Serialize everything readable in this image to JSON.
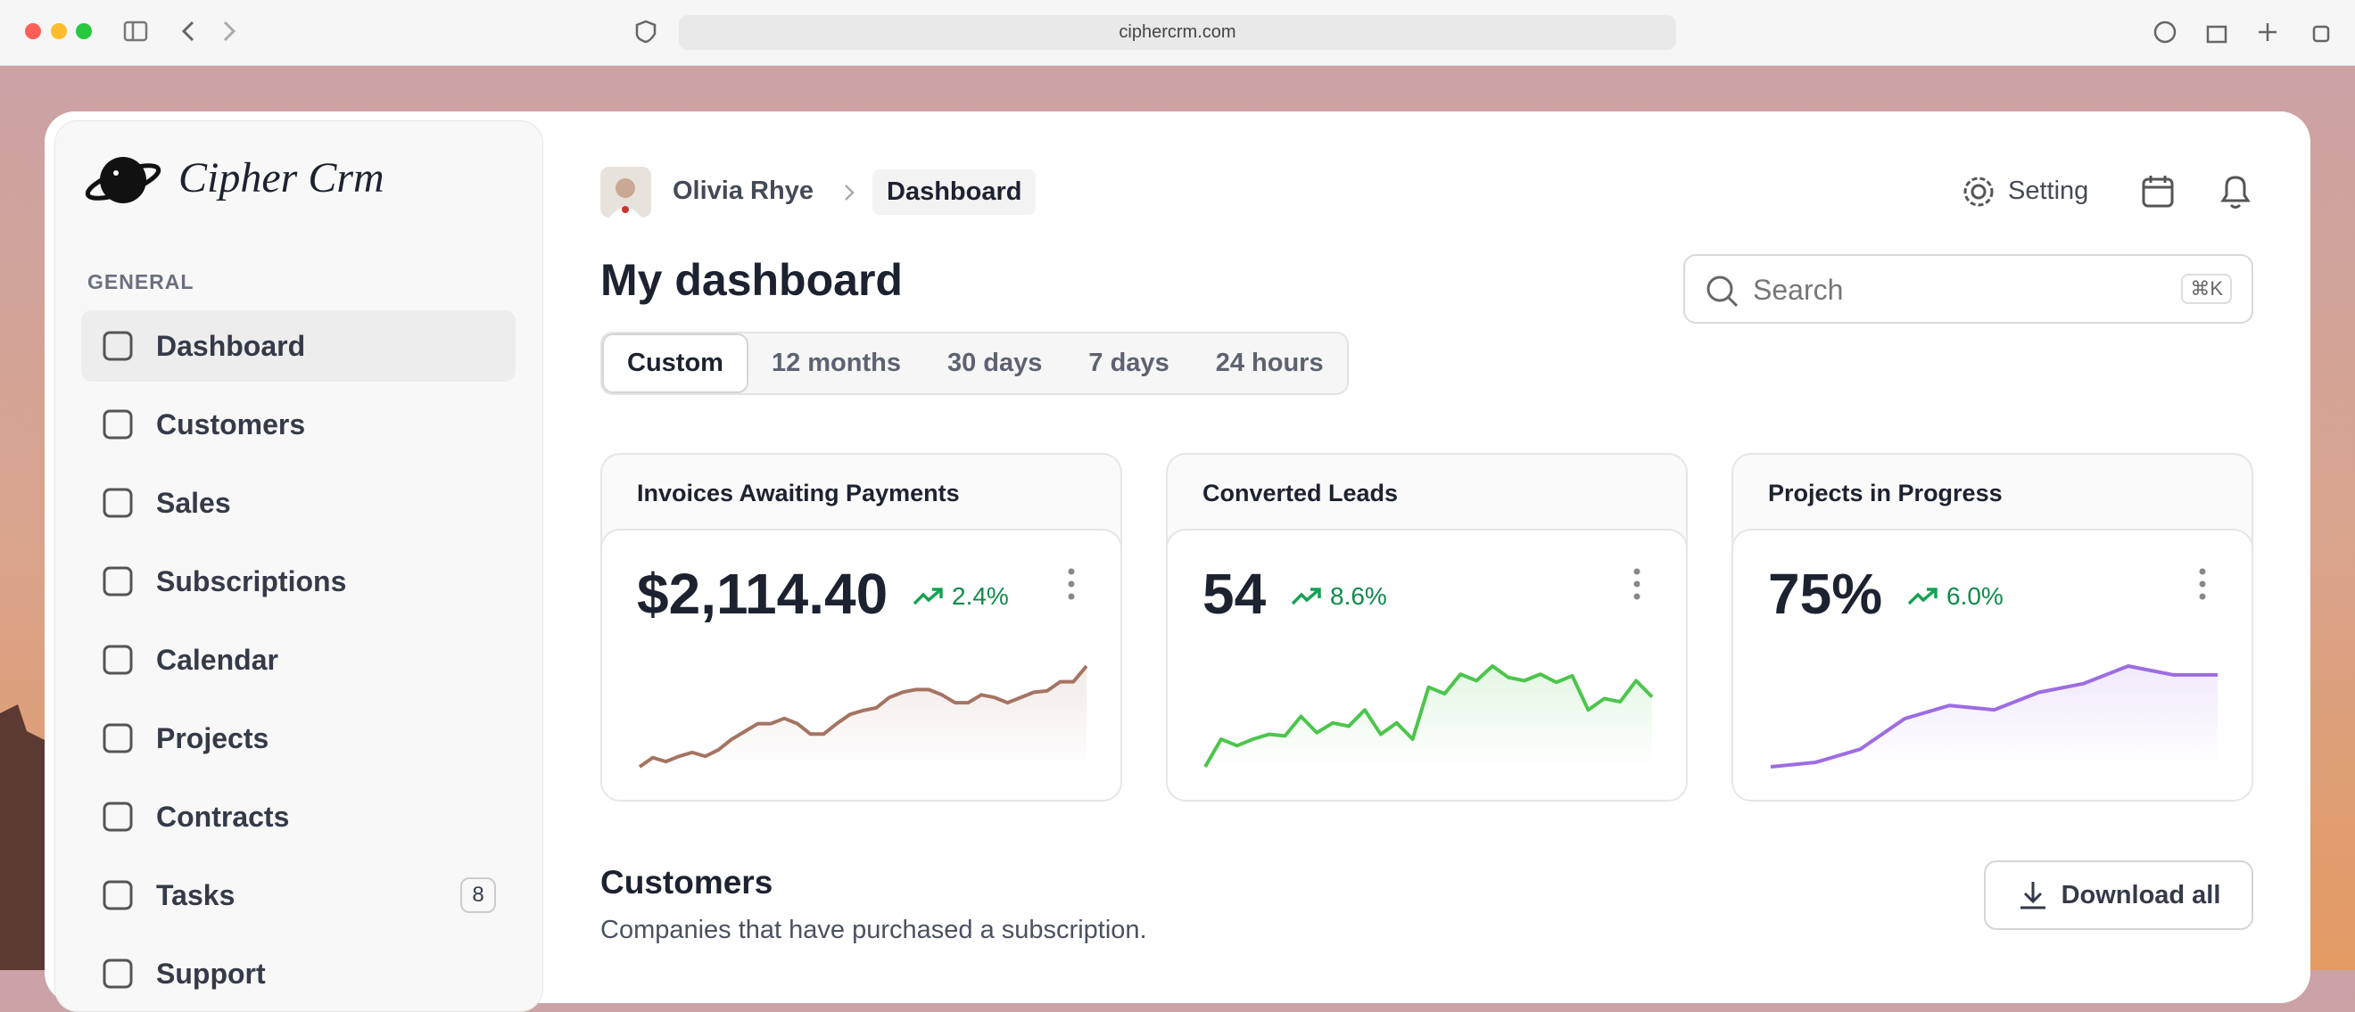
{
  "browser": {
    "url": "ciphercrm.com"
  },
  "sidebar": {
    "logo": "Cipher Crm",
    "section": "GENERAL",
    "active": 0,
    "nav": [
      {
        "label": "Dashboard"
      },
      {
        "label": "Customers"
      },
      {
        "label": "Sales"
      },
      {
        "label": "Subscriptions"
      },
      {
        "label": "Calendar"
      },
      {
        "label": "Projects"
      },
      {
        "label": "Contracts"
      },
      {
        "label": "Tasks",
        "badge": 8
      },
      {
        "label": "Support"
      }
    ]
  },
  "header": {
    "user": "Olivia Rhye",
    "breadcrumb": "Dashboard",
    "setting": "Setting"
  },
  "page": {
    "title": "My dashboard",
    "search": "Search",
    "shortcut": "⌘K",
    "active_tab": 0,
    "tabs": [
      "Custom",
      "12 months",
      "30 days",
      "7 days",
      "24 hours"
    ]
  },
  "cards": [
    {
      "title": "Invoices Awaiting Payments",
      "value": "$2,114.40",
      "change": "2.4%",
      "color": "#a47462",
      "sparkline": [
        5,
        12,
        9,
        13,
        16,
        13,
        18,
        26,
        32,
        38,
        38,
        42,
        38,
        30,
        30,
        38,
        45,
        48,
        50,
        58,
        62,
        64,
        64,
        60,
        54,
        54,
        60,
        58,
        54,
        58,
        62,
        63,
        70,
        70,
        82
      ]
    },
    {
      "title": "Converted Leads",
      "value": "54",
      "change": "8.6%",
      "color": "#4cc54c",
      "sparkline": [
        5,
        22,
        18,
        22,
        25,
        24,
        36,
        26,
        32,
        30,
        40,
        25,
        32,
        22,
        54,
        50,
        62,
        58,
        67,
        60,
        58,
        62,
        57,
        61,
        40,
        47,
        45,
        58,
        48
      ]
    },
    {
      "title": "Projects in Progress",
      "value": "75%",
      "change": "6.0%",
      "color": "#9d6ce2",
      "sparkline": [
        18,
        20,
        26,
        40,
        46,
        44,
        52,
        56,
        64,
        60,
        60
      ]
    }
  ],
  "section": {
    "title": "Customers",
    "subtitle": "Companies that have purchased a subscription.",
    "button": "Download all"
  }
}
